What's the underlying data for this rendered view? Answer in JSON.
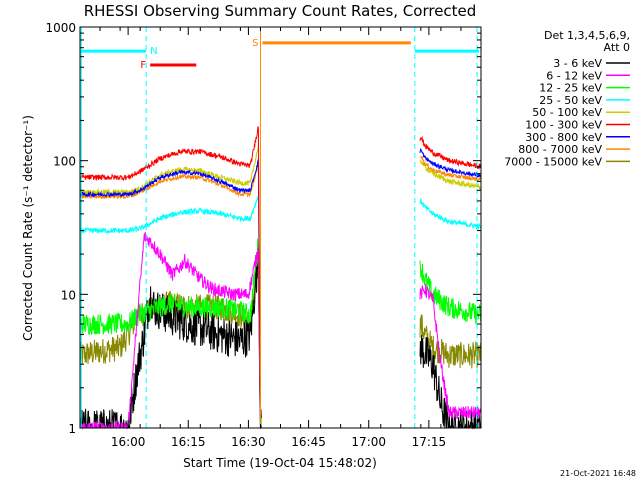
{
  "chart_data": {
    "type": "line",
    "title": "RHESSI Observing Summary Count Rates, Corrected",
    "xlabel": "Start Time (19-Oct-04 15:48:02)",
    "ylabel": "Corrected Count Rate (s⁻¹ detector⁻¹)",
    "ylim": [
      1,
      1000
    ],
    "yscale": "log",
    "xlim_minutes": [
      0,
      100
    ],
    "x_ticks": [
      {
        "label": "16:00",
        "min": 12
      },
      {
        "label": "16:15",
        "min": 27
      },
      {
        "label": "16:30",
        "min": 42
      },
      {
        "label": "16:45",
        "min": 57
      },
      {
        "label": "17:00",
        "min": 72
      },
      {
        "label": "17:15",
        "min": 87
      }
    ],
    "y_ticks": [
      {
        "label": "1",
        "value": 1
      },
      {
        "label": "10",
        "value": 10
      },
      {
        "label": "100",
        "value": 100
      },
      {
        "label": "1000",
        "value": 1000
      }
    ],
    "legend_header": [
      "Det 1,3,4,5,6,9,",
      "Att 0"
    ],
    "legend_position": "right",
    "grid": false,
    "series": [
      {
        "name": "3 - 6 keV",
        "color": "#000000",
        "noise": 0.15,
        "x": [
          0,
          12,
          14.5,
          16,
          17.5,
          18.5,
          22,
          27,
          35,
          40,
          42.5,
          44.5,
          45,
          85,
          88,
          90,
          92,
          100
        ],
        "y": [
          1,
          1,
          3,
          5,
          10,
          8,
          7,
          6,
          5,
          4.5,
          5,
          20,
          1,
          4,
          3,
          1.5,
          1,
          1
        ]
      },
      {
        "name": "6 - 12 keV",
        "color": "#ff00ff",
        "noise": 0.05,
        "x": [
          0,
          12,
          14.5,
          16,
          17.5,
          20,
          23,
          25,
          26,
          30,
          33,
          38,
          42,
          44.5,
          45,
          85,
          86,
          88,
          90,
          92,
          100
        ],
        "y": [
          1,
          1,
          8,
          27,
          25,
          20,
          14,
          16,
          18,
          13,
          11,
          10,
          10,
          22,
          1,
          10,
          11,
          9,
          3,
          1.3,
          1.3
        ]
      },
      {
        "name": "12 - 25 keV",
        "color": "#00ff00",
        "noise": 0.08,
        "x": [
          0,
          12,
          14.5,
          17,
          22,
          28,
          35,
          40,
          42.5,
          44.5,
          45,
          85,
          86,
          88,
          92,
          100
        ],
        "y": [
          6,
          6,
          7,
          7.5,
          8.5,
          8,
          8,
          7.5,
          7,
          25,
          1,
          16,
          13,
          10,
          8,
          7
        ]
      },
      {
        "name": "25 - 50 keV",
        "color": "#00ffff",
        "noise": 0.02,
        "x": [
          0,
          12,
          15,
          20,
          25,
          30,
          35,
          40,
          42.5,
          44.5,
          45,
          85,
          86,
          88,
          92,
          100
        ],
        "y": [
          30,
          30,
          31,
          37,
          41,
          42,
          40,
          37,
          37,
          55,
          1,
          50,
          45,
          40,
          35,
          32
        ]
      },
      {
        "name": "50 - 100 keV",
        "color": "#cccc00",
        "noise": 0.02,
        "x": [
          0,
          12,
          15,
          20,
          25,
          30,
          35,
          40,
          42.5,
          44.5,
          45,
          85,
          86,
          88,
          92,
          100
        ],
        "y": [
          58,
          58,
          62,
          78,
          86,
          84,
          75,
          68,
          68,
          130,
          1,
          100,
          90,
          80,
          70,
          63
        ]
      },
      {
        "name": "100 - 300 keV",
        "color": "#ff0000",
        "noise": 0.02,
        "x": [
          0,
          12,
          15,
          20,
          25,
          30,
          35,
          40,
          42.5,
          44.5,
          45,
          85,
          86,
          88,
          92,
          100
        ],
        "y": [
          75,
          75,
          83,
          104,
          117,
          117,
          107,
          94,
          92,
          180,
          1,
          150,
          130,
          115,
          100,
          90
        ]
      },
      {
        "name": "300 - 800 keV",
        "color": "#0000ff",
        "noise": 0.015,
        "x": [
          0,
          12,
          15,
          20,
          25,
          30,
          35,
          40,
          42.5,
          44.5,
          45,
          85,
          86,
          88,
          92,
          100
        ],
        "y": [
          56,
          56,
          60,
          75,
          82,
          80,
          70,
          60,
          60,
          100,
          1,
          120,
          105,
          95,
          85,
          77
        ]
      },
      {
        "name": "800 - 7000 keV",
        "color": "#ff8800",
        "noise": 0.015,
        "x": [
          0,
          12,
          15,
          20,
          25,
          30,
          35,
          40,
          42.5,
          44.5,
          45,
          85,
          86,
          88,
          92,
          100
        ],
        "y": [
          54,
          54,
          58,
          70,
          76,
          75,
          66,
          56,
          56,
          95,
          1,
          110,
          95,
          85,
          78,
          72
        ]
      },
      {
        "name": "7000 - 15000 keV",
        "color": "#888800",
        "noise": 0.1,
        "x": [
          0,
          10,
          12,
          14.5,
          17,
          22,
          28,
          35,
          40,
          42.5,
          44.5,
          45,
          85,
          86,
          88,
          92,
          100
        ],
        "y": [
          3.5,
          4,
          5,
          7,
          7.5,
          8.5,
          8,
          8,
          7,
          6,
          15,
          1,
          6,
          5,
          4,
          3.5,
          3.5
        ]
      }
    ],
    "annotations": {
      "vlines_dashed_cyan_min": [
        16.5,
        83.5,
        99
      ],
      "vline_solid_cyan_min": [
        0.3
      ],
      "vline_orange_min": [
        45
      ],
      "bars": [
        {
          "label": "N",
          "color": "#00ffff",
          "x0": 0,
          "x1": 16.5,
          "y": 660
        },
        {
          "label": "",
          "color": "#00ffff",
          "x0": 83.5,
          "x1": 99.5,
          "y": 660
        },
        {
          "label": "F",
          "color": "#ff0000",
          "x0": 17.5,
          "x1": 29,
          "y": 520
        },
        {
          "label": "S",
          "color": "#ff8800",
          "x0": 45.5,
          "x1": 82.5,
          "y": 760
        }
      ]
    },
    "footer_date": "21-Oct-2021 16:48"
  }
}
